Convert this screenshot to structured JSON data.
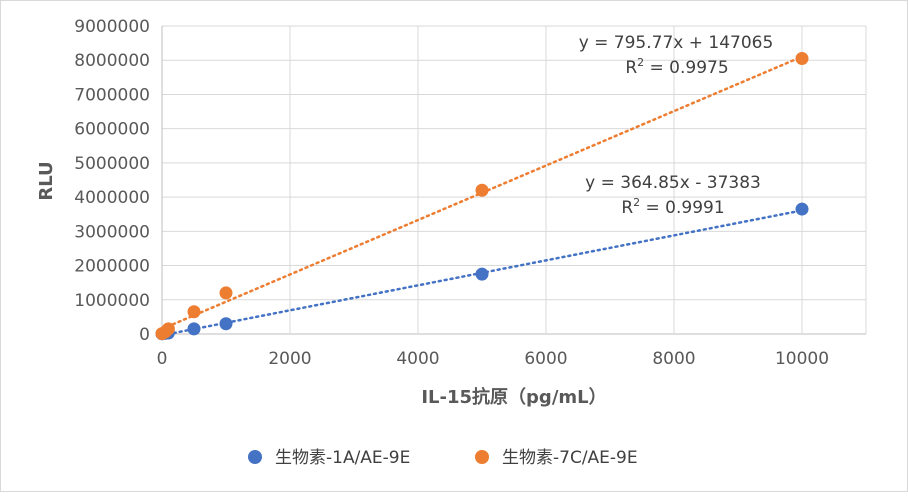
{
  "chart_data": {
    "type": "scatter",
    "xlabel": "IL-15抗原（pg/mL）",
    "ylabel": "RLU",
    "xlim": [
      0,
      11000
    ],
    "ylim": [
      0,
      9000000
    ],
    "x_ticks": [
      "0",
      "2000",
      "4000",
      "6000",
      "8000",
      "10000"
    ],
    "y_ticks": [
      "0",
      "1000000",
      "2000000",
      "3000000",
      "4000000",
      "5000000",
      "6000000",
      "7000000",
      "8000000",
      "9000000"
    ],
    "grid": true,
    "legend_position": "bottom",
    "series": [
      {
        "name": "生物素-1A/AE-9E",
        "color": "#4472c4",
        "points": [
          [
            0,
            5000
          ],
          [
            50,
            20000
          ],
          [
            100,
            30000
          ],
          [
            500,
            150000
          ],
          [
            1000,
            300000
          ],
          [
            5000,
            1750000
          ],
          [
            10000,
            3650000
          ]
        ],
        "trendline": {
          "slope": 364.85,
          "intercept": -37383,
          "equation": "y = 364.85x - 37383",
          "r2_prefix": "R",
          "r2_suffix": " = 0.9991"
        }
      },
      {
        "name": "生物素-7C/AE-9E",
        "color": "#ed7d31",
        "points": [
          [
            0,
            10000
          ],
          [
            50,
            60000
          ],
          [
            100,
            150000
          ],
          [
            500,
            650000
          ],
          [
            1000,
            1200000
          ],
          [
            5000,
            4200000
          ],
          [
            10000,
            8050000
          ]
        ],
        "trendline": {
          "slope": 795.77,
          "intercept": 147065,
          "equation": "y = 795.77x + 147065",
          "r2_prefix": "R",
          "r2_suffix": " = 0.9975"
        }
      }
    ]
  }
}
